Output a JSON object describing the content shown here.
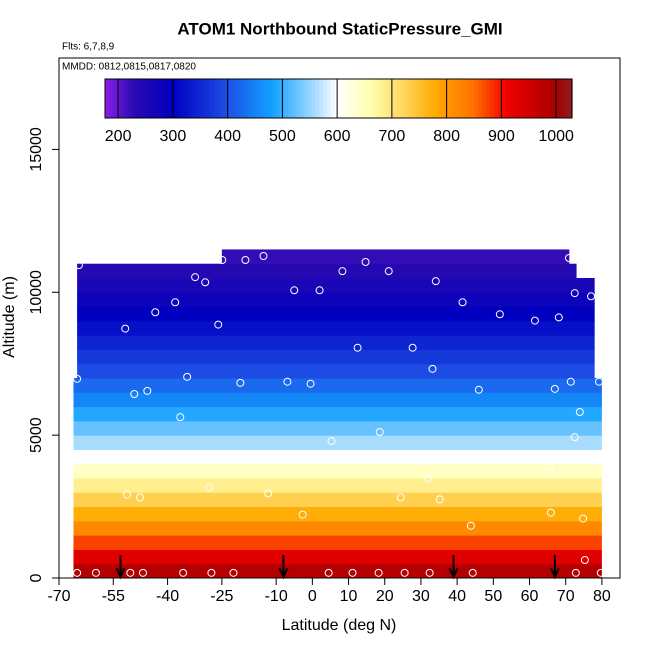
{
  "chart_data": {
    "type": "heatmap",
    "title": "ATOM1 Northbound StaticPressure_GMI",
    "subtitle": "Flts: 6,7,8,9",
    "annotation": "MMDD: 0812,0815,0817,0820",
    "x_label": "Latitude (deg N)",
    "y_label": "Altitude (m)",
    "xlim": [
      -70,
      85
    ],
    "ylim": [
      0,
      18200
    ],
    "xticks": [
      -70,
      -55,
      -40,
      -25,
      -10,
      0,
      10,
      20,
      30,
      40,
      50,
      60,
      70,
      80
    ],
    "yticks": [
      0,
      5000,
      10000,
      15000
    ],
    "rows": {
      "y_bins": [
        0,
        500,
        1000,
        1500,
        2000,
        2500,
        3000,
        3500,
        4000,
        4500,
        5000,
        5500,
        6000,
        6500,
        7000,
        7500,
        8000,
        8500,
        9000,
        9500,
        10000,
        10500,
        11000,
        11500
      ],
      "x_start": [
        -66,
        -66,
        -66,
        -66,
        -66,
        -66,
        -66,
        -66,
        -66,
        -66,
        -66,
        -66,
        -66,
        -66,
        -65,
        -65,
        -65,
        -65,
        -65,
        -65,
        -65,
        -65,
        -25
      ],
      "x_end": [
        80,
        80,
        80,
        80,
        80,
        80,
        80,
        80,
        80,
        80,
        80,
        80,
        80,
        80,
        78,
        78,
        78,
        78,
        78,
        78,
        78,
        73,
        71
      ],
      "values": [
        985,
        930,
        875,
        820,
        775,
        730,
        685,
        645,
        600,
        560,
        525,
        490,
        455,
        425,
        395,
        370,
        345,
        320,
        300,
        280,
        260,
        240,
        225
      ]
    },
    "colorscale": [
      [
        176,
        "#8a1ee8"
      ],
      [
        230,
        "#2a0ab0"
      ],
      [
        300,
        "#0000c0"
      ],
      [
        400,
        "#1e50e6"
      ],
      [
        480,
        "#10a0ff"
      ],
      [
        560,
        "#a8dcff"
      ],
      [
        600,
        "#ffffff"
      ],
      [
        660,
        "#ffffb0"
      ],
      [
        720,
        "#ffd860"
      ],
      [
        780,
        "#ffaa00"
      ],
      [
        850,
        "#ff7000"
      ],
      [
        910,
        "#f00000"
      ],
      [
        1000,
        "#a80000"
      ],
      [
        1029,
        "#8a2020"
      ]
    ],
    "colorbar": {
      "lim": [
        176,
        1029
      ],
      "ticks": [
        200,
        300,
        400,
        500,
        600,
        700,
        800,
        900,
        1000
      ]
    },
    "points": {
      "x": [
        -64.5,
        -32.4,
        -29.6,
        -24.9,
        -18.5,
        -13.5,
        -5.0,
        2.0,
        8.3,
        14.7,
        21.1,
        34.1,
        41.5,
        51.8,
        61.5,
        68.1,
        70.9,
        72.5,
        77.0,
        -51.7,
        -43.4,
        -37.9,
        -26.0,
        12.5,
        27.7,
        33.2,
        -65.0,
        -49.2,
        -45.6,
        -34.6,
        -19.9,
        -6.9,
        -0.5,
        46.0,
        67.0,
        71.4,
        79.2,
        73.9,
        -36.5,
        5.3,
        18.6,
        72.5,
        65.6,
        -51.2,
        -47.6,
        -28.5,
        -12.2,
        -2.7,
        24.4,
        31.9,
        35.2,
        43.8,
        65.9,
        74.8,
        75.3,
        -65.0,
        -59.8,
        -50.3,
        -46.8,
        -35.7,
        -27.9,
        -21.8,
        4.5,
        11.1,
        18.3,
        25.5,
        32.4,
        44.3,
        72.8,
        79.7
      ],
      "y": [
        10950,
        10530,
        10350,
        11130,
        11130,
        11270,
        10070,
        10070,
        10740,
        11060,
        10740,
        10390,
        9650,
        9230,
        9010,
        9120,
        11200,
        9970,
        9860,
        8730,
        9300,
        9650,
        8870,
        8060,
        8060,
        7320,
        6970,
        6440,
        6550,
        7040,
        6830,
        6870,
        6800,
        6590,
        6620,
        6870,
        6870,
        5810,
        5630,
        4790,
        5110,
        4930,
        3910,
        2920,
        2820,
        3170,
        2960,
        2220,
        2820,
        3490,
        2750,
        1830,
        2290,
        2080,
        630,
        180,
        180,
        180,
        180,
        180,
        180,
        180,
        180,
        180,
        180,
        180,
        180,
        180,
        180,
        180
      ]
    },
    "arrows": [
      -53,
      -8,
      39,
      67
    ]
  }
}
